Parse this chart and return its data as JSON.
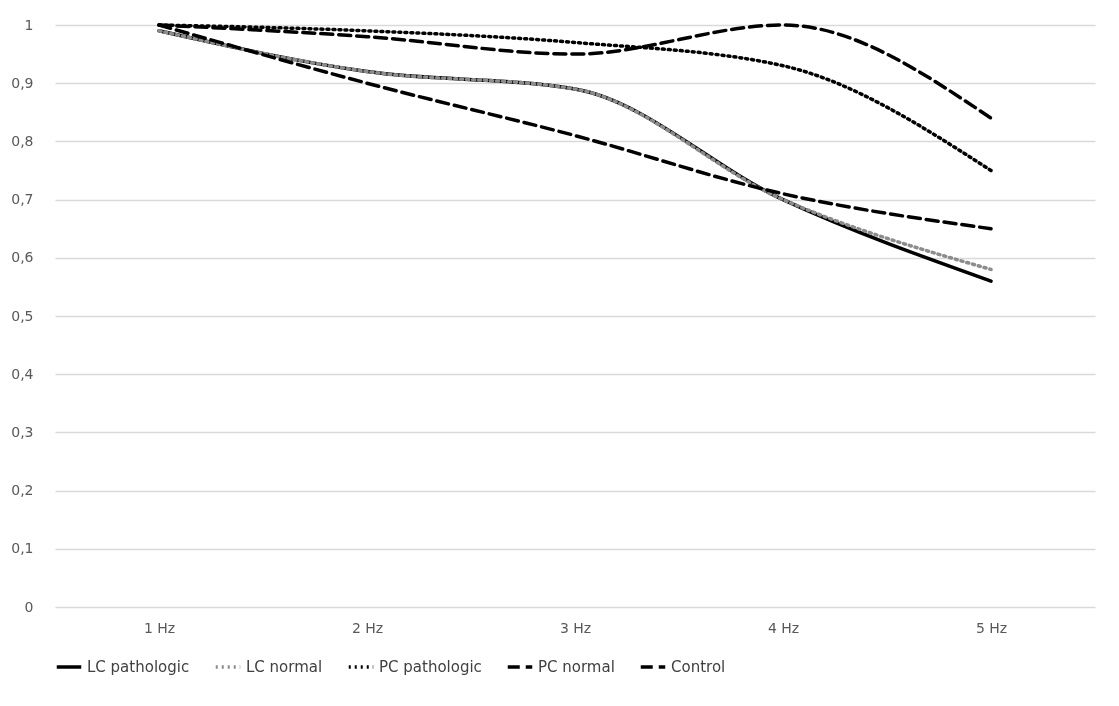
{
  "chart_data": {
    "type": "line",
    "categories": [
      "1 Hz",
      "2 Hz",
      "3 Hz",
      "4 Hz",
      "5 Hz"
    ],
    "series": [
      {
        "name": "LC pathologic",
        "color": "#000000",
        "line_style": "solid",
        "values": [
          0.99,
          0.92,
          0.89,
          0.7,
          0.56
        ]
      },
      {
        "name": "LC normal",
        "color": "#8c8c8c",
        "line_style": "dotted",
        "values": [
          0.99,
          0.92,
          0.89,
          0.7,
          0.58
        ]
      },
      {
        "name": "PC pathologic",
        "color": "#000000",
        "line_style": "dotted",
        "values": [
          1.0,
          0.99,
          0.97,
          0.93,
          0.75
        ]
      },
      {
        "name": "PC normal",
        "color": "#000000",
        "line_style": "dashed",
        "values": [
          1.0,
          0.98,
          0.95,
          1.0,
          0.84
        ]
      },
      {
        "name": "Control",
        "color": "#000000",
        "line_style": "dashed",
        "values": [
          1.0,
          0.9,
          0.81,
          0.71,
          0.65
        ]
      }
    ],
    "ylim": [
      0,
      1
    ],
    "yticks": [
      0,
      {
        "value": 0.1,
        "label": "0,1"
      },
      {
        "value": 0.2,
        "label": "0,2"
      },
      {
        "value": 0.3,
        "label": "0,3"
      },
      {
        "value": 0.4,
        "label": "0,4"
      },
      {
        "value": 0.5,
        "label": "0,5"
      },
      {
        "value": 0.6,
        "label": "0,6"
      },
      {
        "value": 0.7,
        "label": "0,7"
      },
      {
        "value": 0.8,
        "label": "0,8"
      },
      {
        "value": 0.9,
        "label": "0,9"
      },
      1
    ],
    "grid": "y",
    "legend": "bottom",
    "marker": "none"
  }
}
